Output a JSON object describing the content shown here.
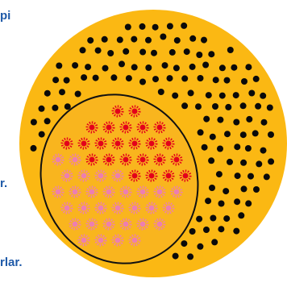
{
  "labels": [
    "pi",
    "r.",
    "rlar."
  ]
}
